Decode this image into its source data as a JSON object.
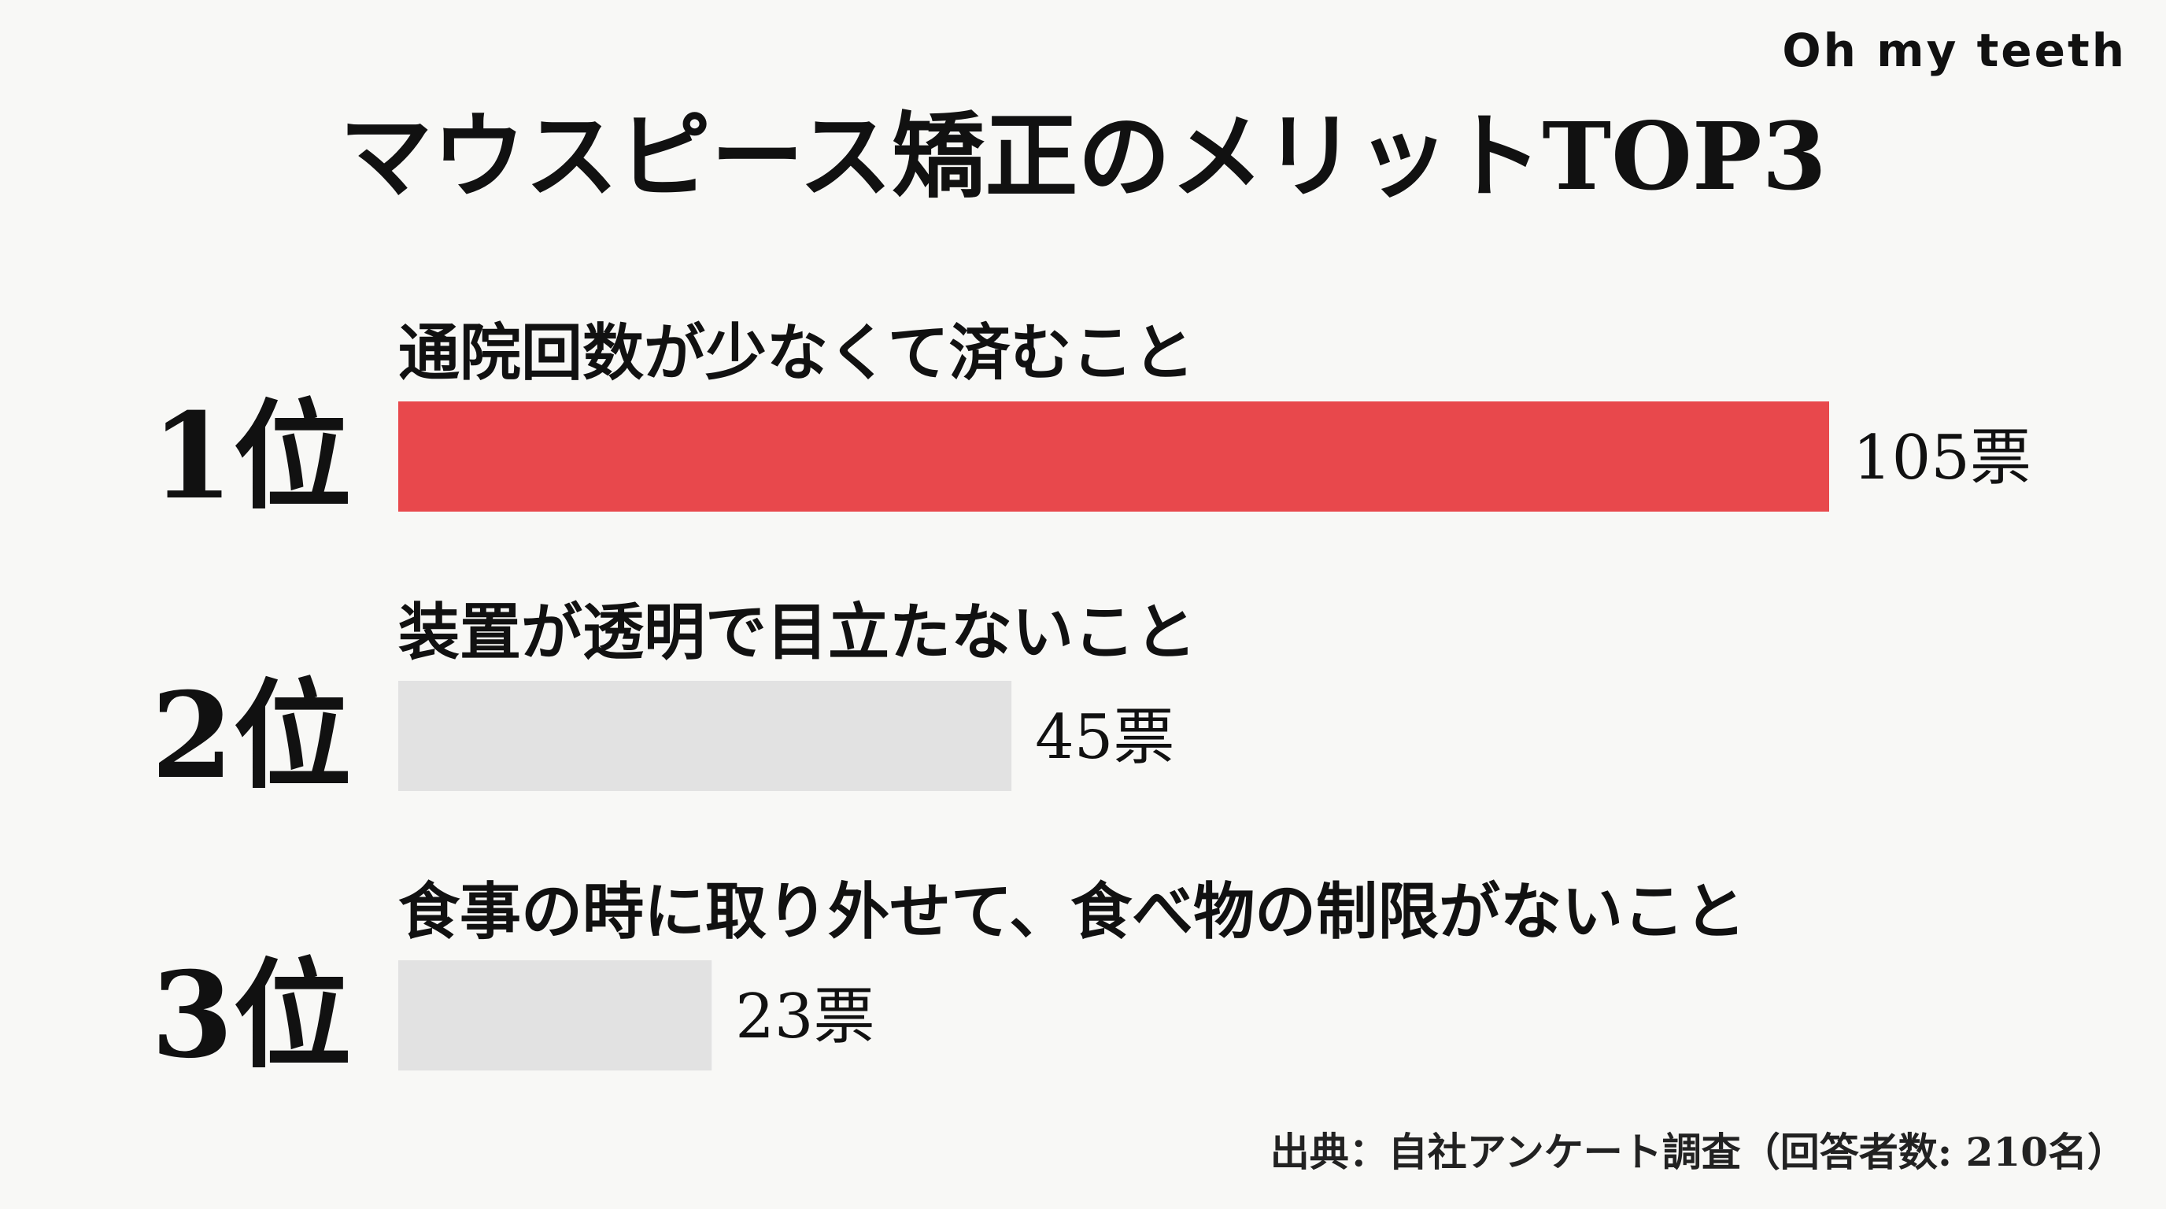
{
  "brand": "Oh my teeth",
  "source": "出典：自社アンケート調査（回答者数: 210名）",
  "chart_data": {
    "type": "bar",
    "orientation": "horizontal",
    "title": "マウスピース矯正のメリットTOP3",
    "value_unit": "票",
    "ranks": [
      "1位",
      "2位",
      "3位"
    ],
    "categories": [
      "通院回数が少なくて済むこと",
      "装置が透明で目立たないこと",
      "食事の時に取り外せて、食べ物の制限がないこと"
    ],
    "values": [
      105,
      45,
      23
    ],
    "value_labels": [
      "105票",
      "45票",
      "23票"
    ],
    "colors": [
      "#e8484c",
      "#e2e2e2",
      "#e2e2e2"
    ],
    "grid": false
  }
}
